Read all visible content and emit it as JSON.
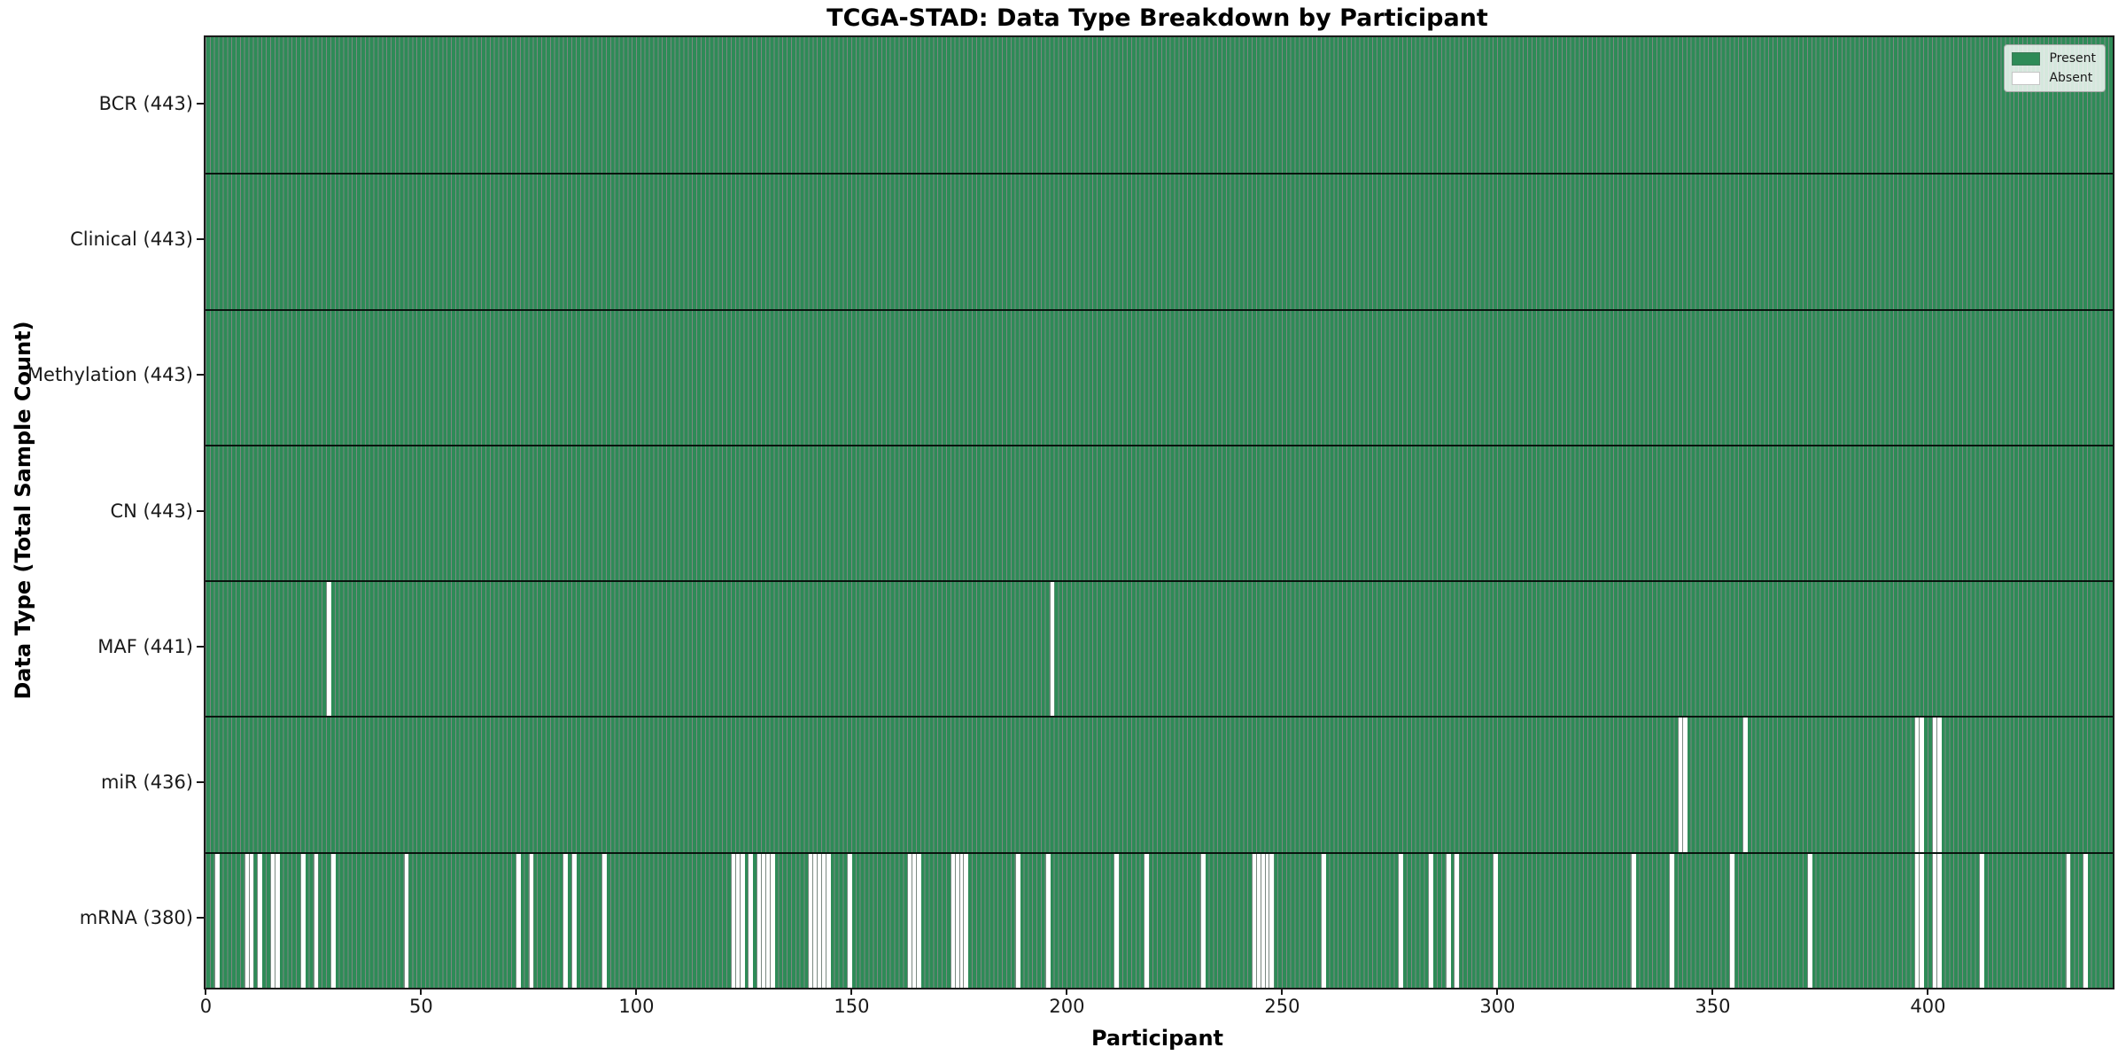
{
  "chart_data": {
    "type": "heatmap",
    "title": "TCGA-STAD: Data Type Breakdown by Participant",
    "xlabel": "Participant",
    "ylabel": "Data Type (Total Sample Count)",
    "n_participants": 443,
    "x_ticks": [
      0,
      50,
      100,
      150,
      200,
      250,
      300,
      350,
      400
    ],
    "x_range": [
      0,
      443
    ],
    "value_encoding": {
      "present": 1,
      "absent": 0
    },
    "rows": [
      {
        "name": "BCR",
        "label": "BCR (443)",
        "present_count": 443,
        "absent_participants": []
      },
      {
        "name": "Clinical",
        "label": "Clinical (443)",
        "present_count": 443,
        "absent_participants": []
      },
      {
        "name": "Methylation",
        "label": "Methylation (443)",
        "present_count": 443,
        "absent_participants": []
      },
      {
        "name": "CN",
        "label": "CN (443)",
        "present_count": 443,
        "absent_participants": []
      },
      {
        "name": "MAF",
        "label": "MAF (441)",
        "present_count": 441,
        "absent_participants": [
          28,
          196
        ]
      },
      {
        "name": "miR",
        "label": "miR (436)",
        "present_count": 436,
        "absent_participants": [
          342,
          343,
          357,
          397,
          398,
          401,
          402
        ]
      },
      {
        "name": "mRNA",
        "label": "mRNA (380)",
        "present_count": 380,
        "absent_participants": [
          2,
          9,
          10,
          12,
          15,
          16,
          22,
          25,
          29,
          46,
          72,
          75,
          83,
          85,
          92,
          122,
          123,
          124,
          126,
          128,
          129,
          130,
          131,
          140,
          141,
          142,
          143,
          144,
          149,
          163,
          164,
          165,
          173,
          174,
          175,
          176,
          188,
          195,
          211,
          218,
          231,
          243,
          244,
          245,
          246,
          247,
          259,
          277,
          284,
          288,
          290,
          299,
          331,
          340,
          354,
          372,
          397,
          398,
          401,
          402,
          412,
          432,
          436
        ]
      }
    ],
    "colors": {
      "present": "#2e8b57",
      "absent": "#ffffff",
      "bar_edge": "rgba(15,40,28,0.55)",
      "row_separator": "rgba(0,0,0,0.85)",
      "spine": "#1a1a1a"
    },
    "legend": {
      "position": "upper-right",
      "entries": [
        {
          "label": "Present",
          "color": "#2e8b57"
        },
        {
          "label": "Absent",
          "color": "#ffffff"
        }
      ]
    }
  }
}
